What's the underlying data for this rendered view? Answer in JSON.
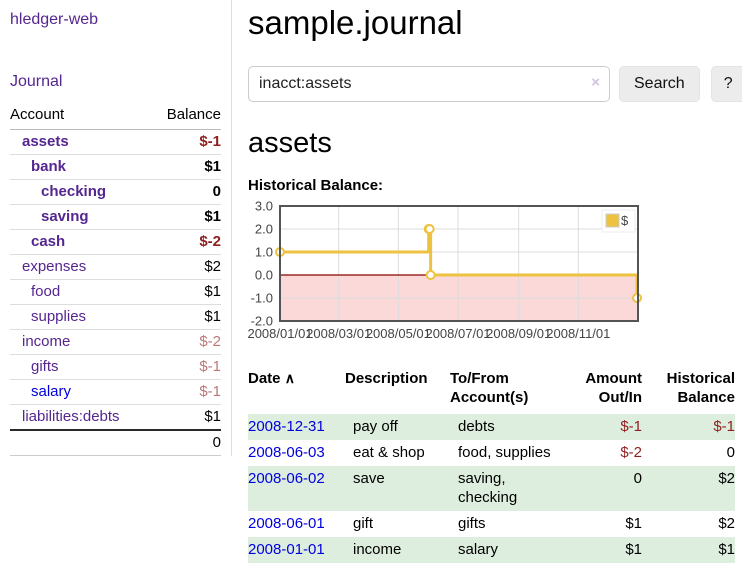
{
  "app": {
    "title": "hledger-web"
  },
  "sidebar": {
    "journal_label": "Journal",
    "headers": {
      "account": "Account",
      "balance": "Balance"
    },
    "accounts": [
      {
        "name": "assets",
        "balance": "$-1"
      },
      {
        "name": "bank",
        "balance": "$1"
      },
      {
        "name": "checking",
        "balance": "0"
      },
      {
        "name": "saving",
        "balance": "$1"
      },
      {
        "name": "cash",
        "balance": "$-2"
      },
      {
        "name": "expenses",
        "balance": "$2"
      },
      {
        "name": "food",
        "balance": "$1"
      },
      {
        "name": "supplies",
        "balance": "$1"
      },
      {
        "name": "income",
        "balance": "$-2"
      },
      {
        "name": "gifts",
        "balance": "$-1"
      },
      {
        "name": "salary",
        "balance": "$-1"
      },
      {
        "name": "liabilities:debts",
        "balance": "$1"
      }
    ],
    "total": "0"
  },
  "main": {
    "title": "sample.journal",
    "account_heading": "assets",
    "chart_label": "Historical Balance:"
  },
  "search": {
    "value": "inacct:assets",
    "clear_icon": "×",
    "button_label": "Search",
    "help_label": "?"
  },
  "register": {
    "headers": {
      "date": "Date",
      "date_sort": "∧",
      "description": "Description",
      "tofrom_line1": "To/From",
      "tofrom_line2": "Account(s)",
      "amount_line1": "Amount",
      "amount_line2": "Out/In",
      "hist_line1": "Historical",
      "hist_line2": "Balance"
    },
    "rows": [
      {
        "date": "2008-12-31",
        "description": "pay off",
        "accounts": "debts",
        "amount": "$-1",
        "balance": "$-1"
      },
      {
        "date": "2008-06-03",
        "description": "eat & shop",
        "accounts": "food, supplies",
        "amount": "$-2",
        "balance": "0"
      },
      {
        "date": "2008-06-02",
        "description": "save",
        "accounts": "saving, checking",
        "amount": "0",
        "balance": "$2"
      },
      {
        "date": "2008-06-01",
        "description": "gift",
        "accounts": "gifts",
        "amount": "$1",
        "balance": "$2"
      },
      {
        "date": "2008-01-01",
        "description": "income",
        "accounts": "salary",
        "amount": "$1",
        "balance": "$1"
      }
    ]
  },
  "chart_data": {
    "type": "line",
    "title": "Historical Balance:",
    "steps": true,
    "series": [
      {
        "name": "$",
        "color": "#edc240",
        "points": [
          [
            "2008-01-01",
            1
          ],
          [
            "2008-06-01",
            2
          ],
          [
            "2008-06-02",
            2
          ],
          [
            "2008-06-03",
            0
          ],
          [
            "2008-12-31",
            -1
          ]
        ]
      }
    ],
    "x_range": [
      "2008-01-01",
      "2009-01-01"
    ],
    "xticks": [
      "2008/01/01",
      "2008/03/01",
      "2008/05/01",
      "2008/07/01",
      "2008/09/01",
      "2008/11/01"
    ],
    "yticks": [
      3.0,
      2.0,
      1.0,
      0.0,
      -1.0,
      -2.0
    ],
    "ylim": [
      -2,
      3
    ],
    "grid": true,
    "legend": {
      "position": "top-right",
      "label": "$"
    },
    "negative_region": {
      "below": 0,
      "color": "#fbd9d9",
      "line_color": "#8b0000"
    },
    "border_color": "#545454",
    "gridline_color": "#dcdcdc",
    "tick_color": "#444444"
  }
}
